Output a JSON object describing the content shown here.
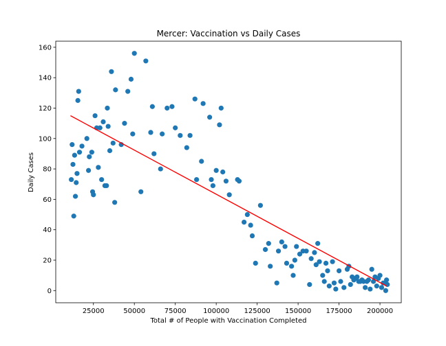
{
  "chart_data": {
    "type": "scatter",
    "title": "Mercer: Vaccination vs Daily Cases",
    "xlabel": "Total # of People with Vaccination Completed",
    "ylabel": "Daily Cases",
    "xlim": [
      2000,
      213000
    ],
    "ylim": [
      -8,
      164
    ],
    "xticks": [
      25000,
      50000,
      75000,
      100000,
      125000,
      150000,
      175000,
      200000
    ],
    "yticks": [
      0,
      20,
      40,
      60,
      80,
      100,
      120,
      140,
      160
    ],
    "grid": false,
    "colors": {
      "points": "#1f77b4",
      "trend": "#ff0000"
    },
    "trendline": {
      "x": [
        11000,
        204000
      ],
      "y": [
        115,
        3
      ]
    },
    "series": [
      {
        "x": [
          11500,
          12000,
          12500,
          13000,
          13500,
          14000,
          14500,
          15000,
          15500,
          16000,
          16500,
          18000,
          21000,
          22000,
          22500,
          24000,
          24500,
          25000,
          26000,
          27000,
          28000,
          29000,
          30000,
          31000,
          32000,
          33000,
          33500,
          34000,
          35000,
          36000,
          37000,
          38000,
          38500,
          42000,
          44000,
          46000,
          48000,
          49000,
          50000,
          54000,
          57000,
          60000,
          61000,
          62000,
          66000,
          67000,
          70000,
          73000,
          75000,
          78000,
          82000,
          84000,
          87000,
          88000,
          91000,
          92000,
          96000,
          97000,
          98000,
          100000,
          102000,
          103000,
          104000,
          106000,
          108000,
          113000,
          114000,
          117000,
          119000,
          121000,
          122000,
          124000,
          127000,
          130000,
          132000,
          133000,
          137000,
          138000,
          140000,
          142000,
          143000,
          146000,
          147000,
          148000,
          149000,
          151000,
          153000,
          155000,
          157000,
          158000,
          160000,
          161000,
          162000,
          163000,
          165000,
          166000,
          167000,
          168000,
          169000,
          171000,
          172000,
          173000,
          175000,
          176000,
          178000,
          180000,
          181000,
          182000,
          183000,
          184000,
          185000,
          186000,
          187000,
          188000,
          189000,
          190000,
          191000,
          192000,
          193000,
          194000,
          195000,
          196000,
          197000,
          198000,
          199000,
          200000,
          201000,
          202000,
          203000,
          203500,
          204000,
          204500
        ],
        "y": [
          73,
          96,
          83,
          49,
          89,
          62,
          71,
          77,
          125,
          131,
          91,
          95,
          100,
          79,
          88,
          91,
          65,
          63,
          115,
          107,
          81,
          107,
          73,
          111,
          69,
          69,
          120,
          108,
          92,
          144,
          97,
          58,
          132,
          96,
          110,
          131,
          139,
          103,
          156,
          65,
          151,
          104,
          121,
          90,
          80,
          103,
          120,
          121,
          107,
          102,
          94,
          102,
          126,
          73,
          85,
          123,
          114,
          73,
          69,
          79,
          109,
          120,
          78,
          72,
          63,
          73,
          72,
          45,
          50,
          43,
          36,
          18,
          56,
          27,
          31,
          16,
          5,
          26,
          32,
          29,
          18,
          16,
          10,
          20,
          29,
          24,
          26,
          26,
          4,
          21,
          25,
          17,
          31,
          19,
          10,
          6,
          18,
          13,
          3,
          19,
          5,
          1,
          13,
          6,
          2,
          14,
          16,
          4,
          9,
          7,
          8,
          9,
          6,
          6,
          7,
          6,
          2,
          6,
          7,
          1,
          14,
          6,
          9,
          3,
          8,
          10,
          2,
          5,
          5,
          0,
          7,
          4
        ]
      }
    ]
  }
}
